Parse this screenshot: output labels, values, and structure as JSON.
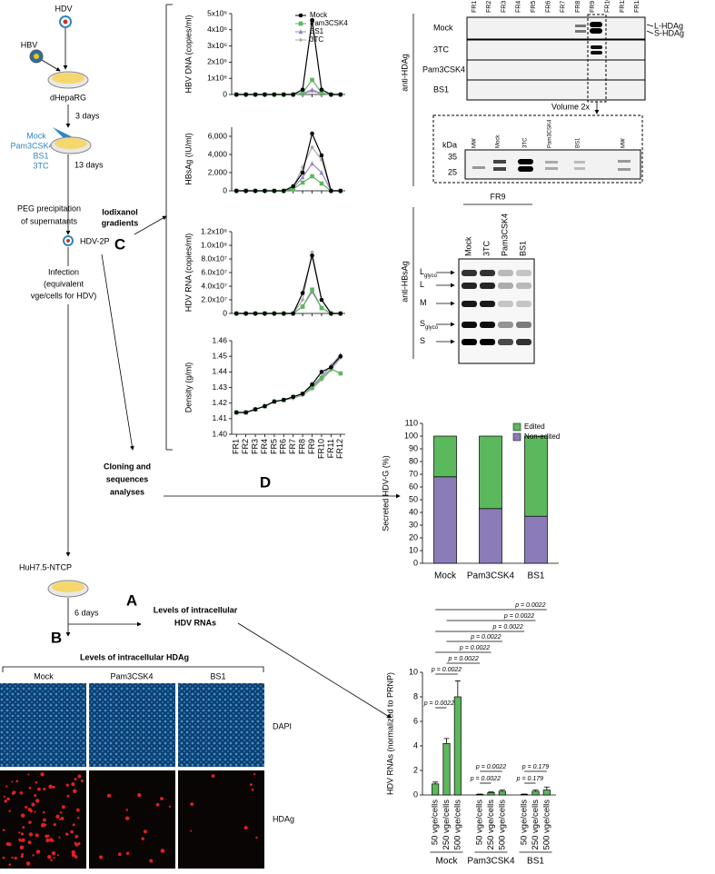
{
  "flow": {
    "hdv": "HDV",
    "hbv": "HBV",
    "cells1": "dHepaRG",
    "days1": "3 days",
    "treatments": [
      "Mock",
      "Pam3CSK4",
      "BS1",
      "3TC"
    ],
    "days2": "13 days",
    "peg": [
      "PEG precipitation",
      "of supernatants"
    ],
    "gradients": [
      "Iodixanol",
      "gradients"
    ],
    "virus": "HDV-2P",
    "infection": [
      "Infection",
      "(equivalent",
      "vge/cells for HDV)"
    ],
    "cloning": [
      "Cloning and",
      "sequences",
      "analyses"
    ],
    "cells2": "HuH7.5-NTCP",
    "days3": "6 days",
    "rna": [
      "Levels of intracellular",
      "HDV RNAs"
    ]
  },
  "panels": {
    "a": "A",
    "b": "B",
    "c": "C",
    "d": "D"
  },
  "hdag_imaging": {
    "title": "Levels of intracellular HDAg",
    "columns": [
      "Mock",
      "Pam3CSK4",
      "BS1"
    ],
    "rows": [
      "DAPI",
      "HDAg"
    ]
  },
  "hdag_blot": {
    "antibody": "anti-HDAg",
    "fractions": [
      "FR1",
      "FR2",
      "FR3",
      "FR4",
      "FR5",
      "FR6",
      "FR7",
      "FR8",
      "FR9",
      "FR10",
      "FR11",
      "FR12"
    ],
    "rows": [
      "Mock",
      "3TC",
      "Pam3CSK4",
      "BS1"
    ],
    "bands": [
      "L-HDAg",
      "S-HDAg"
    ],
    "volume": "Volume 2x",
    "kda": "kDa",
    "markers": [
      35,
      25
    ],
    "lanes": [
      "MW",
      "Mock",
      "3TC",
      "Pam3CSK4",
      "BS1",
      "MW"
    ]
  },
  "hbsag_blot": {
    "antibody": "anti-HBsAg",
    "fraction": "FR9",
    "lanes": [
      "Mock",
      "3TC",
      "Pam3CSK4",
      "BS1"
    ],
    "bands": [
      {
        "label": "L",
        "sub": "glyco"
      },
      {
        "label": "L"
      },
      {
        "label": "M"
      },
      {
        "label": "S",
        "sub": "glyco"
      },
      {
        "label": "S"
      }
    ]
  },
  "chart_data": [
    {
      "type": "line",
      "ylabel": "HBV DNA (copies/ml)",
      "ylim": [
        0,
        5000000
      ],
      "yticks": [
        0,
        {
          "value": 1000000,
          "label": "1x10⁶"
        },
        {
          "value": 2000000,
          "label": "2x10⁶"
        },
        {
          "value": 3000000,
          "label": "3x10⁶"
        },
        {
          "value": 4000000,
          "label": "4x10⁶"
        },
        {
          "value": 5000000,
          "label": "5x10⁶"
        }
      ],
      "legend": "top-right",
      "series": [
        {
          "name": "Mock",
          "color": "#000000",
          "marker": "circle",
          "values": [
            0,
            0,
            0,
            0,
            0,
            0,
            0,
            300000,
            4600000,
            300000,
            0,
            0
          ]
        },
        {
          "name": "Pam3CSK4",
          "color": "#5cb85c",
          "marker": "square",
          "values": [
            0,
            0,
            0,
            0,
            0,
            0,
            0,
            100000,
            900000,
            100000,
            0,
            0
          ]
        },
        {
          "name": "BS1",
          "color": "#9b7fc4",
          "marker": "triangle",
          "values": [
            0,
            0,
            0,
            0,
            0,
            0,
            0,
            50000,
            300000,
            50000,
            0,
            0
          ]
        },
        {
          "name": "3TC",
          "color": "#aaaaaa",
          "marker": "diamond",
          "values": [
            0,
            0,
            0,
            0,
            0,
            0,
            0,
            50000,
            200000,
            50000,
            0,
            0
          ]
        }
      ]
    },
    {
      "type": "line",
      "ylabel": "HBsAg (IU/ml)",
      "ylim": [
        0,
        7000
      ],
      "yticks": [
        0,
        {
          "value": 2000,
          "label": "2,000"
        },
        {
          "value": 4000,
          "label": "4,000"
        },
        {
          "value": 6000,
          "label": "6,000"
        }
      ],
      "series": [
        {
          "color": "#000000",
          "marker": "circle",
          "values": [
            0,
            0,
            0,
            0,
            0,
            0,
            500,
            2000,
            6300,
            3900,
            0,
            0
          ]
        },
        {
          "color": "#5cb85c",
          "marker": "square",
          "values": [
            0,
            0,
            0,
            0,
            0,
            0,
            200,
            900,
            1600,
            800,
            0,
            0
          ]
        },
        {
          "color": "#9b7fc4",
          "marker": "triangle",
          "values": [
            0,
            0,
            0,
            0,
            0,
            0,
            300,
            1500,
            3000,
            2000,
            0,
            0
          ]
        },
        {
          "color": "#aaaaaa",
          "marker": "diamond",
          "values": [
            0,
            0,
            0,
            0,
            0,
            0,
            400,
            2600,
            4800,
            3400,
            0,
            0
          ]
        }
      ]
    },
    {
      "type": "line",
      "ylabel": "HDV RNA (copies/ml)",
      "ylim": [
        0,
        120000000
      ],
      "yticks": [
        0,
        {
          "value": 20000000,
          "label": "2.0x10⁷"
        },
        {
          "value": 40000000,
          "label": "4.0x10⁷"
        },
        {
          "value": 60000000,
          "label": "6.0x10⁷"
        },
        {
          "value": 80000000,
          "label": "8.0x10⁷"
        },
        {
          "value": 100000000,
          "label": "1.0x10⁸"
        },
        {
          "value": 120000000,
          "label": "1.2x10⁸"
        }
      ],
      "series": [
        {
          "color": "#000000",
          "marker": "circle",
          "values": [
            0,
            0,
            0,
            0,
            0,
            0,
            0,
            30000000,
            85000000,
            20000000,
            0,
            0
          ]
        },
        {
          "color": "#5cb85c",
          "marker": "square",
          "values": [
            0,
            0,
            0,
            0,
            0,
            0,
            0,
            10000000,
            35000000,
            8000000,
            0,
            0
          ]
        },
        {
          "color": "#9b7fc4",
          "marker": "triangle",
          "values": [
            0,
            0,
            0,
            0,
            0,
            0,
            0,
            10000000,
            32000000,
            8000000,
            0,
            0
          ]
        },
        {
          "color": "#aaaaaa",
          "marker": "diamond",
          "values": [
            0,
            0,
            0,
            0,
            0,
            0,
            0,
            20000000,
            90000000,
            20000000,
            0,
            0
          ]
        }
      ]
    },
    {
      "type": "line",
      "ylabel": "Density (g/ml)",
      "ylim": [
        1.4,
        1.46
      ],
      "yticks": [
        {
          "value": 1.4,
          "label": "1.40"
        },
        1.41,
        1.42,
        1.43,
        1.44,
        1.45,
        1.46
      ],
      "categories": [
        "FR1",
        "FR2",
        "FR3",
        "FR4",
        "FR5",
        "FR6",
        "FR7",
        "FR8",
        "FR9",
        "FR10",
        "FR11",
        "FR12"
      ],
      "series": [
        {
          "color": "#000000",
          "marker": "circle",
          "values": [
            1.414,
            1.414,
            1.416,
            1.418,
            1.421,
            1.422,
            1.424,
            1.426,
            1.432,
            1.44,
            1.443,
            1.45
          ]
        },
        {
          "color": "#5cb85c",
          "marker": "square",
          "values": [
            1.414,
            1.414,
            1.416,
            1.418,
            1.421,
            1.422,
            1.424,
            1.426,
            1.43,
            1.436,
            1.442,
            1.439
          ]
        },
        {
          "color": "#9b7fc4",
          "marker": "triangle",
          "values": [
            1.414,
            1.414,
            1.416,
            1.418,
            1.421,
            1.422,
            1.424,
            1.426,
            1.431,
            1.437,
            1.444,
            1.451
          ]
        },
        {
          "color": "#aaaaaa",
          "marker": "diamond",
          "values": [
            1.414,
            1.414,
            1.416,
            1.418,
            1.421,
            1.422,
            1.423,
            1.425,
            1.429,
            1.435,
            1.441,
            1.449
          ]
        }
      ]
    },
    {
      "type": "stacked_bar",
      "ylabel": "Secreted HDV-G (%)",
      "categories": [
        "Mock",
        "Pam3CSK4",
        "BS1"
      ],
      "ylim": [
        0,
        110
      ],
      "yticks": [
        0,
        10,
        20,
        30,
        40,
        50,
        60,
        70,
        80,
        90,
        100,
        110
      ],
      "legend": "top-right",
      "series": [
        {
          "name": "Non-edited",
          "color": "#8b7bb8",
          "values": [
            68,
            43,
            37
          ]
        },
        {
          "name": "Edited",
          "color": "#5cb85c",
          "values": [
            32,
            57,
            63
          ]
        }
      ]
    },
    {
      "type": "bar",
      "ylabel": "HDV RNAs (normalized to PRNP)",
      "groups": [
        "Mock",
        "Pam3CSK4",
        "BS1"
      ],
      "categories": [
        "50 vge/cells",
        "250 vge/cells",
        "500 vge/cells",
        "50 vge/cells",
        "250 vge/cells",
        "500 vge/cells",
        "50 vge/cells",
        "250 vge/cells",
        "500 vge/cells"
      ],
      "values": [
        0.9,
        4.2,
        8.0,
        0.05,
        0.2,
        0.3,
        0.05,
        0.3,
        0.4
      ],
      "errors": [
        0.15,
        0.4,
        1.3,
        0.02,
        0.05,
        0.1,
        0.02,
        0.1,
        0.25
      ],
      "color": "#5cb85c",
      "ylim": [
        0,
        10
      ],
      "yticks": [
        0,
        2,
        4,
        6,
        8,
        10
      ],
      "annotations": [
        "p = 0.0022",
        "p = 0.0022",
        "p = 0.0022",
        "p = 0.0022",
        "p = 0.0022",
        "p = 0.0022",
        "p = 0.0022",
        "p = 0.0022",
        "p = 0.0022",
        "p = 0.0022",
        "p = 0.179",
        "p = 0.179"
      ]
    }
  ]
}
